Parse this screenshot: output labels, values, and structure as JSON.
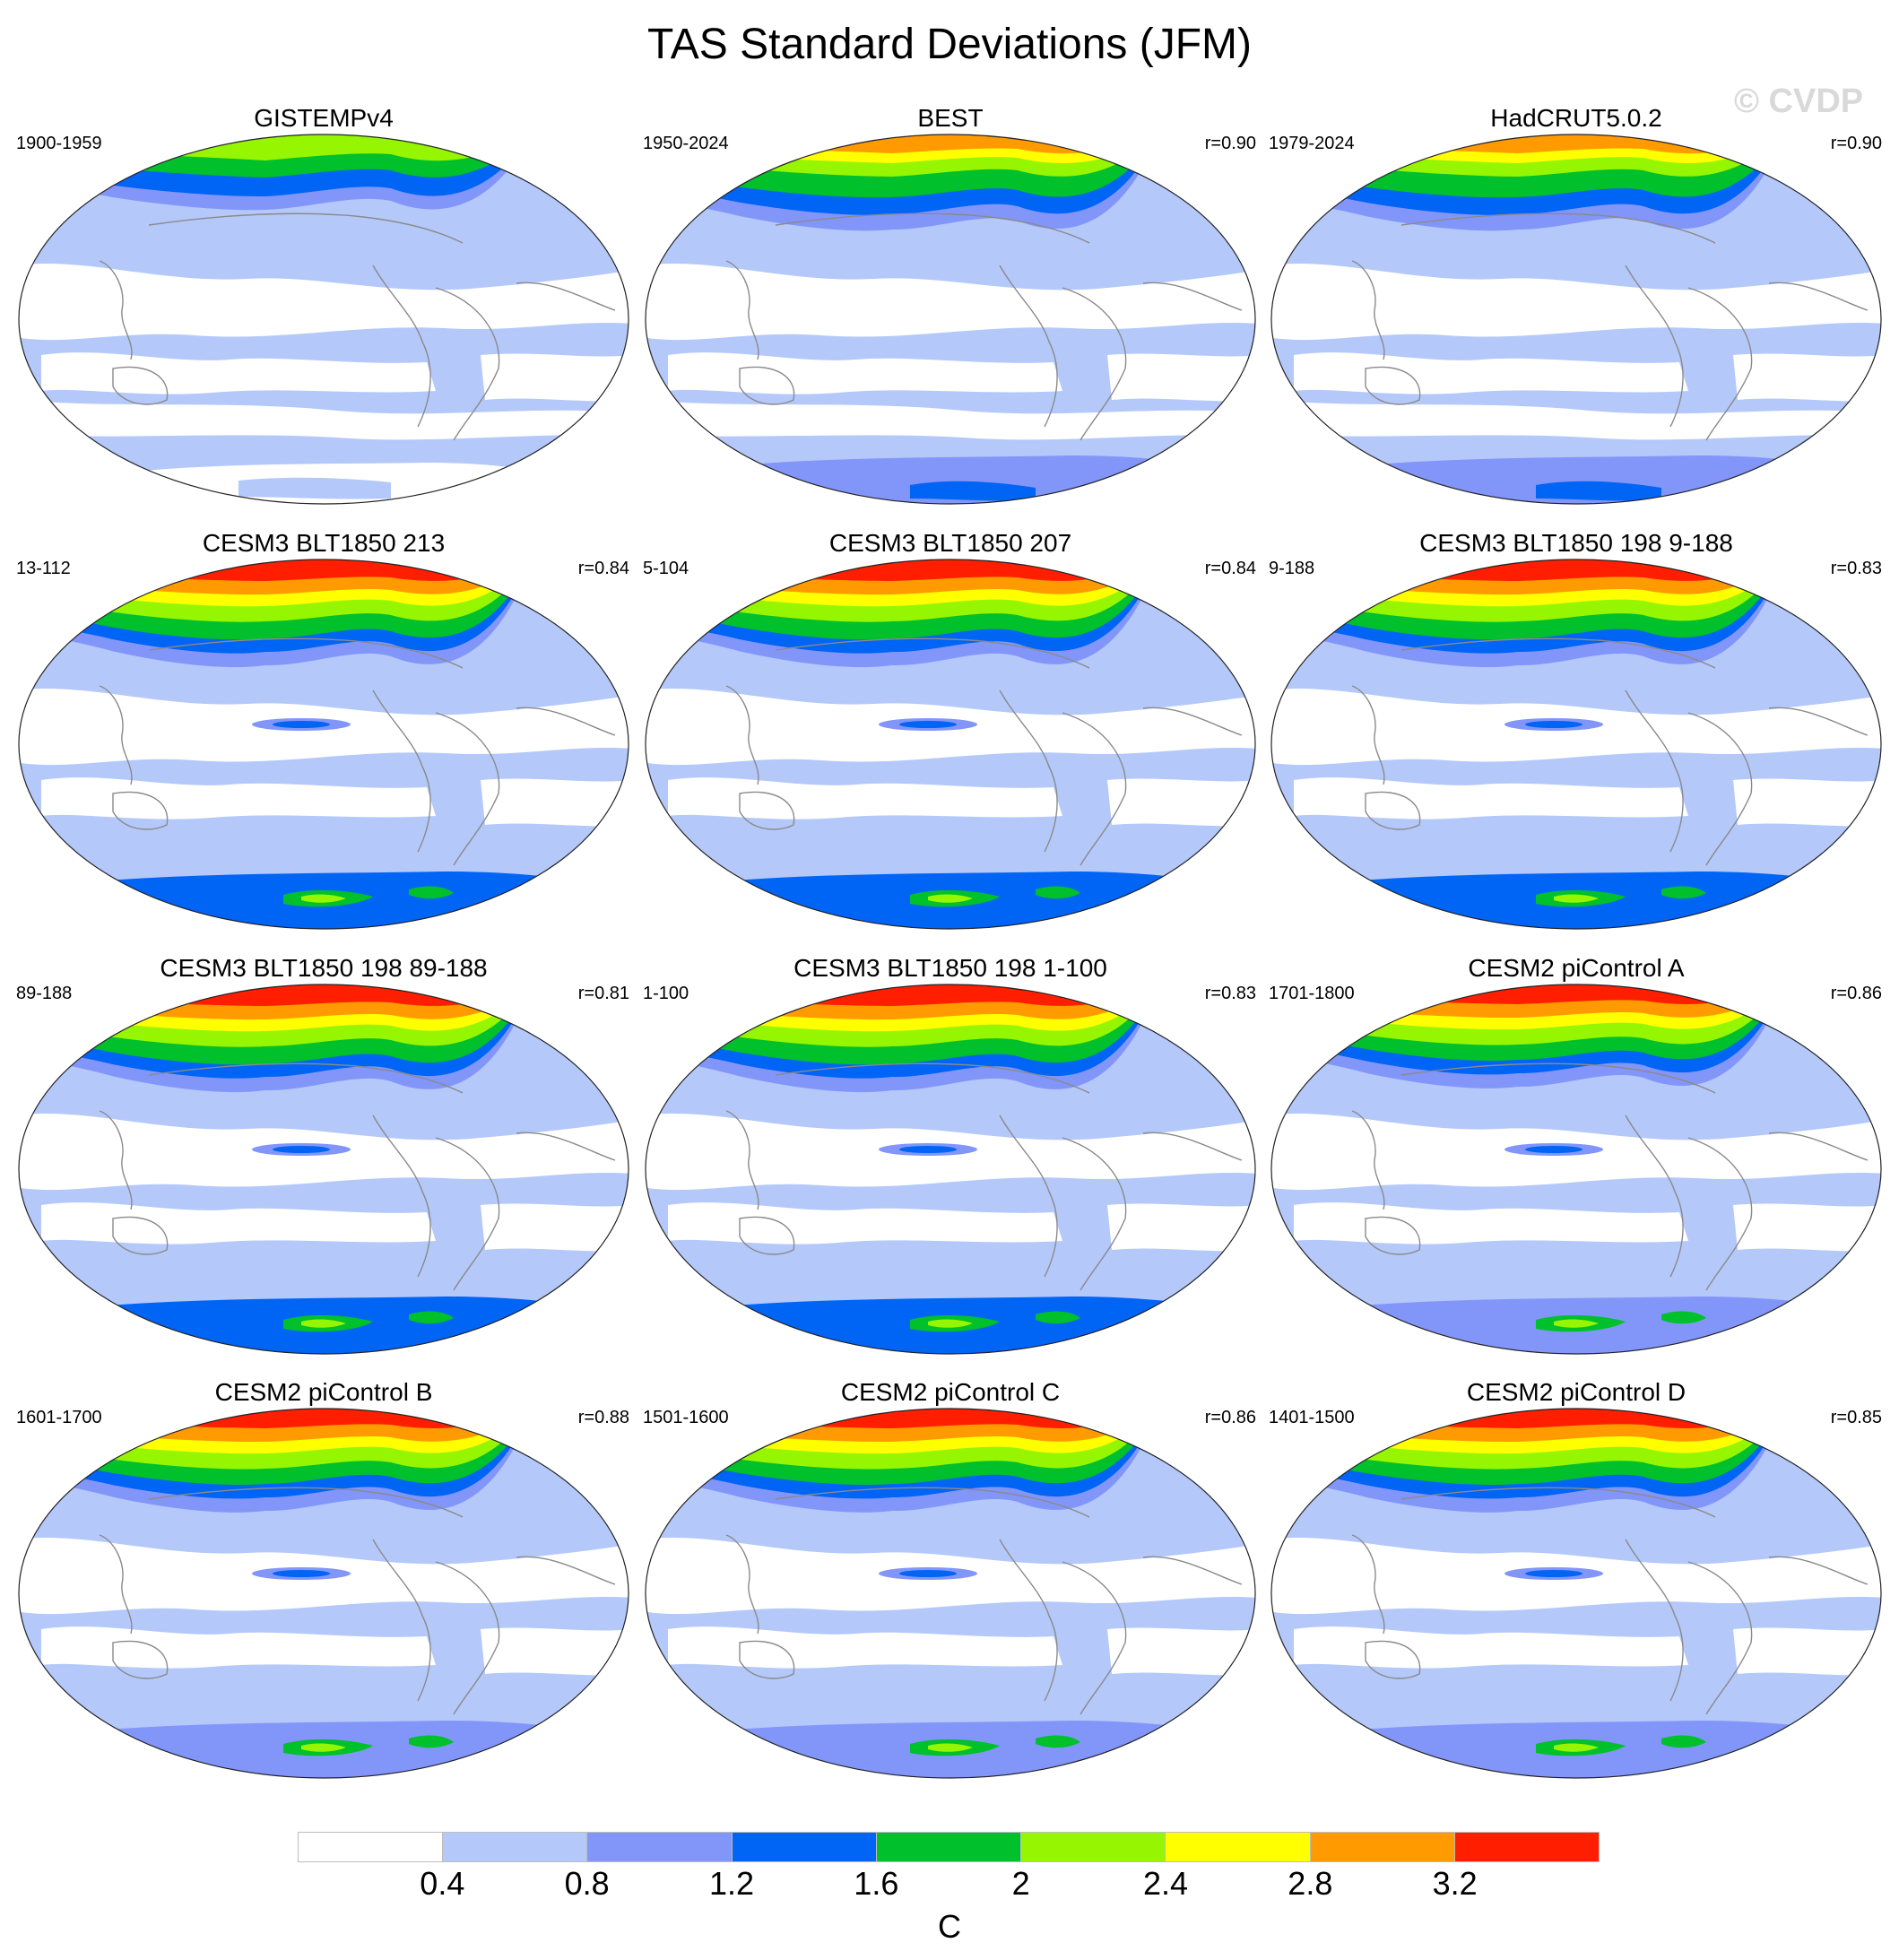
{
  "figure": {
    "title": "TAS Standard Deviations (JFM)",
    "watermark": "© CVDP"
  },
  "panels": [
    {
      "title": "GISTEMPv4",
      "period": "1900-1959",
      "corr": "",
      "style": "obs-sparse"
    },
    {
      "title": "BEST",
      "period": "1950-2024",
      "corr": "r=0.90",
      "style": "obs"
    },
    {
      "title": "HadCRUT5.0.2",
      "period": "1979-2024",
      "corr": "r=0.90",
      "style": "obs"
    },
    {
      "title": "CESM3 BLT1850 213",
      "period": "13-112",
      "corr": "r=0.84",
      "style": "model-high"
    },
    {
      "title": "CESM3 BLT1850 207",
      "period": "5-104",
      "corr": "r=0.84",
      "style": "model-high"
    },
    {
      "title": "CESM3 BLT1850 198 9-188",
      "period": "9-188",
      "corr": "r=0.83",
      "style": "model-high"
    },
    {
      "title": "CESM3 BLT1850 198 89-188",
      "period": "89-188",
      "corr": "r=0.81",
      "style": "model-high"
    },
    {
      "title": "CESM3 BLT1850 198 1-100",
      "period": "1-100",
      "corr": "r=0.83",
      "style": "model-high"
    },
    {
      "title": "CESM2 piControl A",
      "period": "1701-1800",
      "corr": "r=0.86",
      "style": "model-mid"
    },
    {
      "title": "CESM2 piControl B",
      "period": "1601-1700",
      "corr": "r=0.88",
      "style": "model-mid"
    },
    {
      "title": "CESM2 piControl C",
      "period": "1501-1600",
      "corr": "r=0.86",
      "style": "model-mid"
    },
    {
      "title": "CESM2 piControl D",
      "period": "1401-1500",
      "corr": "r=0.85",
      "style": "model-mid"
    }
  ],
  "colorbar": {
    "units": "C",
    "labels": [
      "0.4",
      "0.8",
      "1.2",
      "1.6",
      "2",
      "2.4",
      "2.8",
      "3.2"
    ],
    "colors": [
      "#ffffff",
      "#b4c8fa",
      "#8296fa",
      "#0064f5",
      "#00c02c",
      "#96f500",
      "#ffff00",
      "#ff9b00",
      "#ff1e00"
    ]
  }
}
